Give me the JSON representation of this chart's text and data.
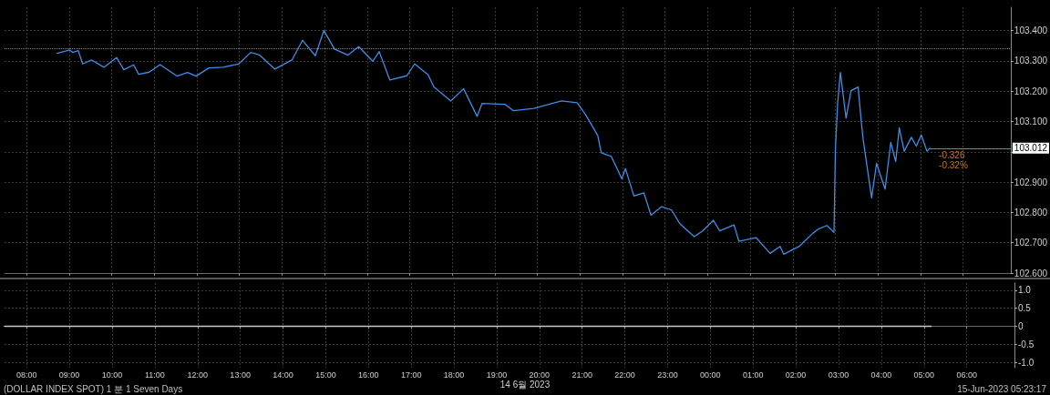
{
  "chart_data": [
    {
      "type": "line",
      "xlim": [
        "2023-06-14T07:29",
        "2023-06-15T07:07"
      ],
      "ylim": [
        102.6,
        103.477
      ],
      "xticks": [
        {
          "value": "2023-06-14T08:00",
          "label": null
        },
        {
          "value": "2023-06-14T09:00",
          "label": null
        },
        {
          "value": "2023-06-14T10:00",
          "label": null
        },
        {
          "value": "2023-06-14T11:00",
          "label": null
        },
        {
          "value": "2023-06-14T12:00",
          "label": null
        },
        {
          "value": "2023-06-14T13:00",
          "label": null
        },
        {
          "value": "2023-06-14T14:00",
          "label": null
        },
        {
          "value": "2023-06-14T15:00",
          "label": null
        },
        {
          "value": "2023-06-14T16:00",
          "label": null
        },
        {
          "value": "2023-06-14T17:00",
          "label": null
        },
        {
          "value": "2023-06-14T18:00",
          "label": null
        },
        {
          "value": "2023-06-14T19:00",
          "label": null
        },
        {
          "value": "2023-06-14T20:00",
          "label": null
        },
        {
          "value": "2023-06-14T21:00",
          "label": null
        },
        {
          "value": "2023-06-14T22:00",
          "label": null
        },
        {
          "value": "2023-06-14T23:00",
          "label": null
        },
        {
          "value": "2023-06-15T00:00",
          "label": null
        },
        {
          "value": "2023-06-15T01:00",
          "label": null
        },
        {
          "value": "2023-06-15T02:00",
          "label": null
        },
        {
          "value": "2023-06-15T03:00",
          "label": null
        },
        {
          "value": "2023-06-15T04:00",
          "label": null
        },
        {
          "value": "2023-06-15T05:00",
          "label": null
        },
        {
          "value": "2023-06-15T06:00",
          "label": null
        }
      ],
      "yticks": [
        {
          "value": 102.6,
          "label": "102.600"
        },
        {
          "value": 102.7,
          "label": "102.700"
        },
        {
          "value": 102.8,
          "label": "102.800"
        },
        {
          "value": 102.9,
          "label": "102.900"
        },
        {
          "value": 103.0,
          "label": null
        },
        {
          "value": 103.1,
          "label": "103.100"
        },
        {
          "value": 103.2,
          "label": "103.200"
        },
        {
          "value": 103.3,
          "label": "103.300"
        },
        {
          "value": 103.4,
          "label": "103.400"
        }
      ],
      "tick_labels": "y",
      "grid": true,
      "marker": "none",
      "line_style": "solid",
      "series": [
        {
          "color": "#3d8ee6",
          "x": [
            "2023-06-14T08:43",
            "2023-06-14T09:01",
            "2023-06-14T09:05",
            "2023-06-14T09:13",
            "2023-06-14T09:19",
            "2023-06-14T09:32",
            "2023-06-14T09:49",
            "2023-06-14T10:07",
            "2023-06-14T10:17",
            "2023-06-14T10:31",
            "2023-06-14T10:38",
            "2023-06-14T10:53",
            "2023-06-14T11:08",
            "2023-06-14T11:32",
            "2023-06-14T11:47",
            "2023-06-14T11:59",
            "2023-06-14T12:17",
            "2023-06-14T12:37",
            "2023-06-14T12:59",
            "2023-06-14T13:16",
            "2023-06-14T13:28",
            "2023-06-14T13:50",
            "2023-06-14T14:14",
            "2023-06-14T14:29",
            "2023-06-14T14:47",
            "2023-06-14T14:59",
            "2023-06-14T15:14",
            "2023-06-14T15:33",
            "2023-06-14T15:48",
            "2023-06-14T16:08",
            "2023-06-14T16:17",
            "2023-06-14T16:32",
            "2023-06-14T16:56",
            "2023-06-14T17:07",
            "2023-06-14T17:26",
            "2023-06-14T17:34",
            "2023-06-14T17:58",
            "2023-06-14T18:16",
            "2023-06-14T18:35",
            "2023-06-14T18:42",
            "2023-06-14T19:14",
            "2023-06-14T19:26",
            "2023-06-14T19:55",
            "2023-06-14T20:34",
            "2023-06-14T20:56",
            "2023-06-14T21:08",
            "2023-06-14T21:25",
            "2023-06-14T21:30",
            "2023-06-14T21:44",
            "2023-06-14T21:59",
            "2023-06-14T22:04",
            "2023-06-14T22:16",
            "2023-06-14T22:30",
            "2023-06-14T22:40",
            "2023-06-14T22:55",
            "2023-06-14T23:09",
            "2023-06-14T23:21",
            "2023-06-14T23:41",
            "2023-06-14T23:53",
            "2023-06-15T00:08",
            "2023-06-15T00:17",
            "2023-06-15T00:37",
            "2023-06-15T00:44",
            "2023-06-15T01:08",
            "2023-06-15T01:28",
            "2023-06-15T01:42",
            "2023-06-15T01:47",
            "2023-06-15T02:09",
            "2023-06-15T02:28",
            "2023-06-15T02:36",
            "2023-06-15T02:48",
            "2023-06-15T02:58",
            "2023-06-15T03:00",
            "2023-06-15T03:03",
            "2023-06-15T03:07",
            "2023-06-15T03:15",
            "2023-06-15T03:22",
            "2023-06-15T03:32",
            "2023-06-15T03:36",
            "2023-06-15T03:39",
            "2023-06-15T03:51",
            "2023-06-15T03:58",
            "2023-06-15T04:06",
            "2023-06-15T04:10",
            "2023-06-15T04:18",
            "2023-06-15T04:25",
            "2023-06-15T04:30",
            "2023-06-15T04:37",
            "2023-06-15T04:47",
            "2023-06-15T04:54",
            "2023-06-15T05:01",
            "2023-06-15T05:09",
            "2023-06-15T05:13"
          ],
          "values": [
            103.325,
            103.336,
            103.328,
            103.334,
            103.29,
            103.303,
            103.279,
            103.311,
            103.271,
            103.287,
            103.256,
            103.263,
            103.288,
            103.25,
            103.262,
            103.25,
            103.277,
            103.279,
            103.29,
            103.328,
            103.32,
            103.273,
            103.303,
            103.368,
            103.317,
            103.4,
            103.339,
            103.319,
            103.347,
            103.299,
            103.331,
            103.237,
            103.251,
            103.29,
            103.254,
            103.214,
            103.168,
            103.208,
            103.117,
            103.16,
            103.157,
            103.136,
            103.143,
            103.168,
            103.162,
            103.122,
            103.054,
            102.997,
            102.985,
            102.911,
            102.945,
            102.854,
            102.865,
            102.791,
            102.819,
            102.808,
            102.762,
            102.72,
            102.739,
            102.774,
            102.739,
            102.759,
            102.705,
            102.717,
            102.665,
            102.688,
            102.662,
            102.688,
            102.731,
            102.745,
            102.757,
            102.734,
            103.008,
            103.157,
            103.262,
            103.111,
            103.202,
            103.214,
            103.111,
            103.042,
            102.848,
            102.962,
            102.905,
            102.877,
            103.031,
            102.968,
            103.079,
            103.002,
            103.048,
            103.019,
            103.056,
            103.002,
            103.012
          ]
        }
      ],
      "ref_lines": [
        {
          "axis": "y",
          "value": 103.339,
          "color": "#c87800",
          "line_style": "dotted"
        },
        {
          "axis": "y",
          "value": 103.012,
          "label": "103.012",
          "color": "#c87800",
          "line_style": "solid"
        }
      ],
      "annotations": [
        {
          "text": "-0.326",
          "x": "2023-06-15T05:13",
          "y": 103.012
        },
        {
          "text": "-0.32%",
          "x": "2023-06-15T05:13",
          "y": 103.012
        }
      ]
    },
    {
      "type": "line",
      "xlim": [
        "2023-06-14T07:29",
        "2023-06-15T07:07"
      ],
      "ylim": [
        -1.15,
        1.2
      ],
      "xticks": [
        {
          "value": "2023-06-14T08:00",
          "label": "08:00"
        },
        {
          "value": "2023-06-14T09:00",
          "label": "09:00"
        },
        {
          "value": "2023-06-14T10:00",
          "label": "10:00"
        },
        {
          "value": "2023-06-14T11:00",
          "label": "11:00"
        },
        {
          "value": "2023-06-14T12:00",
          "label": "12:00"
        },
        {
          "value": "2023-06-14T13:00",
          "label": "13:00"
        },
        {
          "value": "2023-06-14T14:00",
          "label": "14:00"
        },
        {
          "value": "2023-06-14T15:00",
          "label": "15:00"
        },
        {
          "value": "2023-06-14T16:00",
          "label": "16:00"
        },
        {
          "value": "2023-06-14T17:00",
          "label": "17:00"
        },
        {
          "value": "2023-06-14T18:00",
          "label": "18:00"
        },
        {
          "value": "2023-06-14T19:00",
          "label": "19:00"
        },
        {
          "value": "2023-06-14T20:00",
          "label": "20:00"
        },
        {
          "value": "2023-06-14T21:00",
          "label": "21:00"
        },
        {
          "value": "2023-06-14T22:00",
          "label": "22:00"
        },
        {
          "value": "2023-06-14T23:00",
          "label": "23:00"
        },
        {
          "value": "2023-06-15T00:00",
          "label": "00:00"
        },
        {
          "value": "2023-06-15T01:00",
          "label": "01:00"
        },
        {
          "value": "2023-06-15T02:00",
          "label": "02:00"
        },
        {
          "value": "2023-06-15T03:00",
          "label": "03:00"
        },
        {
          "value": "2023-06-15T04:00",
          "label": "04:00"
        },
        {
          "value": "2023-06-15T05:00",
          "label": "05:00"
        },
        {
          "value": "2023-06-15T06:00",
          "label": "06:00"
        }
      ],
      "yticks": [
        {
          "value": 1,
          "label": "1.0"
        },
        {
          "value": 0.5,
          "label": "0.5"
        },
        0,
        {
          "value": -0.5,
          "label": "-0.5"
        },
        {
          "value": -1,
          "label": "-1.0"
        }
      ],
      "grid": true,
      "marker": "none",
      "line_style": "solid",
      "xlabel": "14 6월 2023",
      "series": [
        {
          "color": "#c8c8c8",
          "x": [
            "2023-06-14T07:29",
            "2023-06-15T05:10"
          ],
          "values": [
            0,
            0
          ]
        }
      ],
      "annotations": [
        "(DOLLAR INDEX SPOT) 1 분 1 Seven Days",
        "15-Jun-2023 05:23:17"
      ]
    }
  ]
}
